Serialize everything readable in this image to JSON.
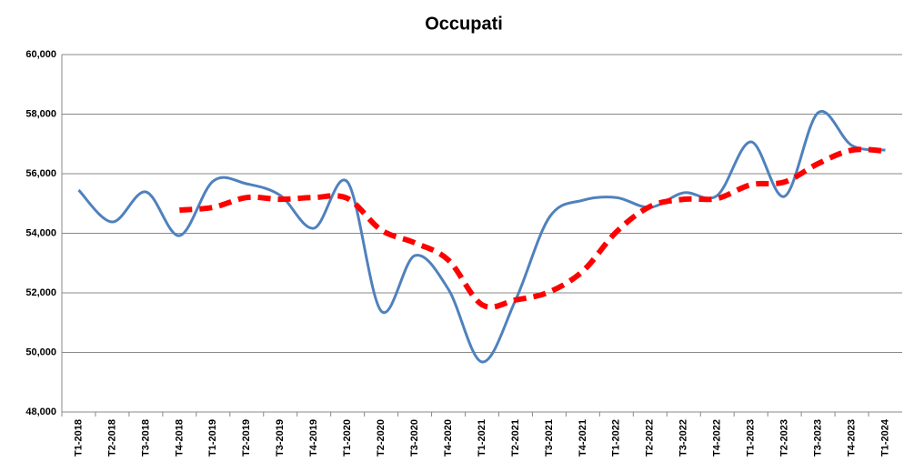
{
  "chart_data": {
    "type": "line",
    "title": "Occupati",
    "categories": [
      "T1-2018",
      "T2-2018",
      "T3-2018",
      "T4-2018",
      "T1-2019",
      "T2-2019",
      "T3-2019",
      "T4-2019",
      "T1-2020",
      "T2-2020",
      "T3-2020",
      "T4-2020",
      "T1-2021",
      "T2-2021",
      "T3-2021",
      "T4-2021",
      "T1-2022",
      "T2-2022",
      "T3-2022",
      "T4-2022",
      "T1-2023",
      "T2-2023",
      "T3-2023",
      "T4-2023",
      "T1-2024"
    ],
    "series": [
      {
        "color": "#4f81bd",
        "style": "solid",
        "values": [
          55450,
          54380,
          55390,
          53920,
          55750,
          55660,
          55270,
          54170,
          55720,
          51390,
          53250,
          52120,
          49680,
          51760,
          54530,
          55110,
          55200,
          54870,
          55360,
          55270,
          57070,
          55240,
          58050,
          56950,
          56790
        ]
      },
      {
        "color": "#ff0000",
        "style": "dashed",
        "values": [
          null,
          null,
          null,
          54780,
          54870,
          55200,
          55140,
          55200,
          55170,
          54110,
          53680,
          53100,
          51600,
          51760,
          52030,
          52730,
          54050,
          54900,
          55140,
          55170,
          55630,
          55720,
          56340,
          56790,
          56760
        ]
      }
    ],
    "ylim": [
      48000,
      60000
    ],
    "yticks": [
      {
        "value": 48000,
        "label": "48,000"
      },
      {
        "value": 50000,
        "label": "50,000"
      },
      {
        "value": 52000,
        "label": "52,000"
      },
      {
        "value": 54000,
        "label": "54,000"
      },
      {
        "value": 56000,
        "label": "56,000"
      },
      {
        "value": 58000,
        "label": "58,000"
      },
      {
        "value": 60000,
        "label": "60,000"
      }
    ],
    "grid": true
  }
}
